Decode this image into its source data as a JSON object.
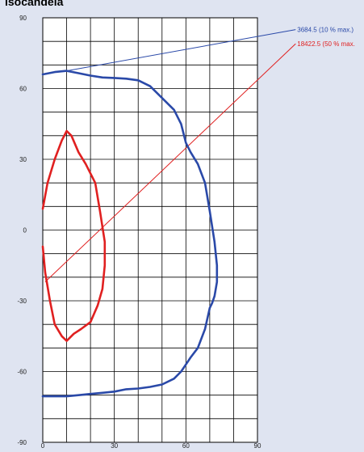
{
  "title": "isocandela",
  "chart_data": {
    "type": "line",
    "title": "isocandela",
    "xlabel": "",
    "ylabel": "",
    "xlim": [
      0,
      90
    ],
    "ylim": [
      -90,
      90
    ],
    "x_ticks": [
      0,
      30,
      60,
      90
    ],
    "y_ticks": [
      90,
      60,
      30,
      0,
      -30,
      -60,
      -90
    ],
    "grid": true,
    "series": [
      {
        "name": "3684.5 (10 % max.)",
        "color": "#2a49a8",
        "x": [
          0,
          5,
          10,
          15,
          20,
          25,
          30,
          35,
          40,
          45,
          50,
          55,
          58,
          60,
          62,
          65,
          68,
          70,
          72,
          73,
          73,
          72,
          71,
          70,
          68,
          65,
          62,
          60,
          58,
          55,
          50,
          45,
          40,
          35,
          30,
          25,
          20,
          15,
          10,
          5,
          0
        ],
        "y": [
          66,
          67,
          67.5,
          66.5,
          65.5,
          64.7,
          64.5,
          64.2,
          63.5,
          61,
          56,
          51,
          45,
          37,
          33,
          28,
          20,
          8,
          -5,
          -15,
          -22,
          -28,
          -31,
          -33,
          -42,
          -50,
          -54,
          -57,
          -60,
          -63,
          -65.5,
          -66.5,
          -67.2,
          -67.5,
          -68.5,
          -69,
          -69.5,
          -70,
          -70.5,
          -70.5,
          -70.5
        ]
      },
      {
        "name": "18422.5 (50 % max.",
        "color": "#e02020",
        "x": [
          0,
          2,
          5,
          8,
          10,
          12,
          15,
          18,
          22,
          24,
          26,
          26,
          25,
          23,
          20,
          16,
          13,
          10,
          8,
          5,
          3,
          1,
          0
        ],
        "y": [
          9,
          20,
          30,
          38,
          42,
          40,
          33,
          28,
          20,
          8,
          -5,
          -15,
          -25,
          -32,
          -39,
          -42,
          -44,
          -47,
          -45,
          -40,
          -30,
          -18,
          -7
        ]
      }
    ],
    "annotations": [
      {
        "text": "3684.5 (10 % max.)",
        "color": "#2a49a8",
        "from": [
          10,
          67.5
        ],
        "to": [
          106,
          85
        ]
      },
      {
        "text": "18422.5 (50 % max.",
        "color": "#e02020",
        "from": [
          1,
          -22
        ],
        "to": [
          106,
          79
        ]
      }
    ]
  }
}
